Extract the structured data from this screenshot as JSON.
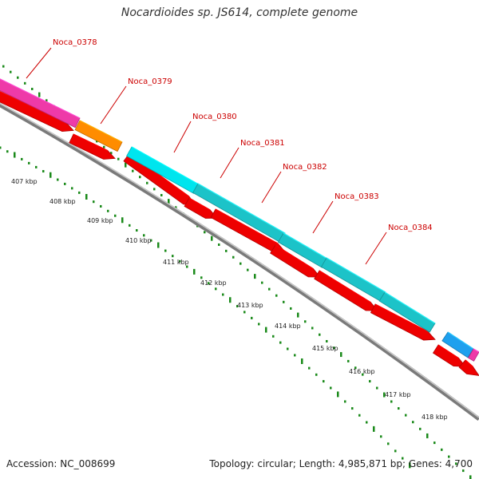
{
  "title": "Nocardioides sp. JS614, complete genome",
  "footer": {
    "accession": "Accession: NC_008699",
    "stats": "Topology: circular; Length: 4,985,871 bp; Genes: 4,700"
  },
  "colors": {
    "magenta": "#ee3aa8",
    "orange": "#ff8c00",
    "cyan": "#00e5ee",
    "teal": "#1cc3c8",
    "blue": "#1ea0ee",
    "cds_red": "#ee0000",
    "backbone": "#888888",
    "tick_green": "#1a8a1a",
    "label_red": "#cc0000"
  },
  "genes": [
    {
      "name": "Noca_0378",
      "color": "magenta"
    },
    {
      "name": "Noca_0379",
      "color": "orange"
    },
    {
      "name": "Noca_0380",
      "color": "cyan"
    },
    {
      "name": "Noca_0381",
      "color": "teal"
    },
    {
      "name": "Noca_0382",
      "color": "teal"
    },
    {
      "name": "Noca_0383",
      "color": "teal"
    },
    {
      "name": "Noca_0384",
      "color": "teal"
    }
  ],
  "kbp_ticks": [
    "407 kbp",
    "408 kbp",
    "409 kbp",
    "410 kbp",
    "411 kbp",
    "412 kbp",
    "413 kbp",
    "414 kbp",
    "415 kbp",
    "416 kbp",
    "417 kbp",
    "418 kbp"
  ]
}
